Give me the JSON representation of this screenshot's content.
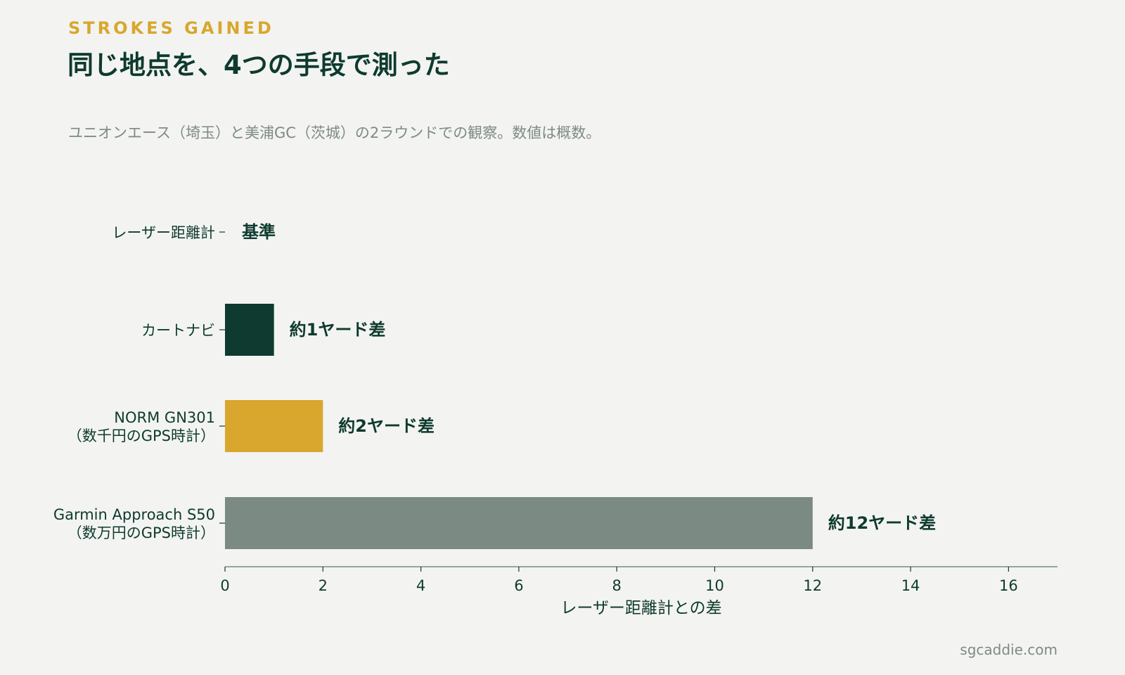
{
  "header": {
    "kicker": "STROKES GAINED",
    "title": "同じ地点を、4つの手段で測った",
    "subtitle": "ユニオンエース（埼玉）と美浦GC（茨城）の2ラウンドでの観察。数値は概数。"
  },
  "footer": {
    "source": "sgcaddie.com"
  },
  "colors": {
    "background": "#f3f4f1",
    "kicker": "#d9a62e",
    "title": "#0e3a2f",
    "subtitle": "#7e8a84",
    "text": "#0e3a2f",
    "axis": "#7b8a82",
    "source": "#7e8a84"
  },
  "chart_data": {
    "type": "bar",
    "orientation": "horizontal",
    "categories": [
      [
        "レーザー距離計"
      ],
      [
        "カートナビ"
      ],
      [
        "NORM GN301",
        "（数千円のGPS時計）"
      ],
      [
        "Garmin Approach S50",
        "（数万円のGPS時計）"
      ]
    ],
    "values": [
      0,
      1,
      2,
      12
    ],
    "bar_colors": [
      "#0e3a2f",
      "#0e3a2f",
      "#d9a62e",
      "#7b8a82"
    ],
    "data_labels": [
      "基準",
      "約1ヤード差",
      "約2ヤード差",
      "約12ヤード差"
    ],
    "xlabel": "レーザー距離計との差",
    "ylabel": "",
    "xlim": [
      0,
      17
    ],
    "xticks": [
      0,
      2,
      4,
      6,
      8,
      10,
      12,
      14,
      16
    ],
    "grid": false,
    "legend": "none"
  }
}
